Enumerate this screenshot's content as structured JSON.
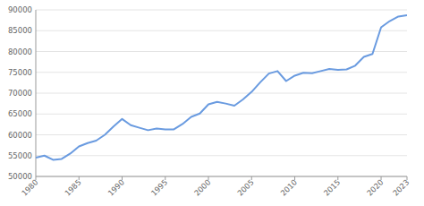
{
  "chart_data": {
    "type": "line",
    "x": [
      1980,
      1981,
      1982,
      1983,
      1984,
      1985,
      1986,
      1987,
      1988,
      1989,
      1990,
      1991,
      1992,
      1993,
      1994,
      1995,
      1996,
      1997,
      1998,
      1999,
      2000,
      2001,
      2002,
      2003,
      2004,
      2005,
      2006,
      2007,
      2008,
      2009,
      2010,
      2011,
      2012,
      2013,
      2014,
      2015,
      2016,
      2017,
      2018,
      2019,
      2020,
      2021,
      2022,
      2023
    ],
    "values": [
      54500,
      55000,
      54000,
      54200,
      55500,
      57200,
      58000,
      58600,
      60000,
      62000,
      63800,
      62300,
      61700,
      61100,
      61500,
      61300,
      61300,
      62600,
      64300,
      65100,
      67300,
      67900,
      67500,
      67000,
      68500,
      70300,
      72600,
      74700,
      75300,
      72900,
      74200,
      74900,
      74800,
      75300,
      75800,
      75600,
      75700,
      76600,
      78700,
      79400,
      85800,
      87300,
      88400,
      88700
    ],
    "color": "#6a9be0",
    "xlim": [
      1980,
      2023
    ],
    "xticks": [
      1980,
      1985,
      1990,
      1995,
      2000,
      2005,
      2010,
      2015,
      2020,
      2023
    ],
    "ylim": [
      50000,
      90000
    ],
    "yticks": [
      50000,
      55000,
      60000,
      65000,
      70000,
      75000,
      80000,
      85000,
      90000
    ],
    "grid": true
  }
}
